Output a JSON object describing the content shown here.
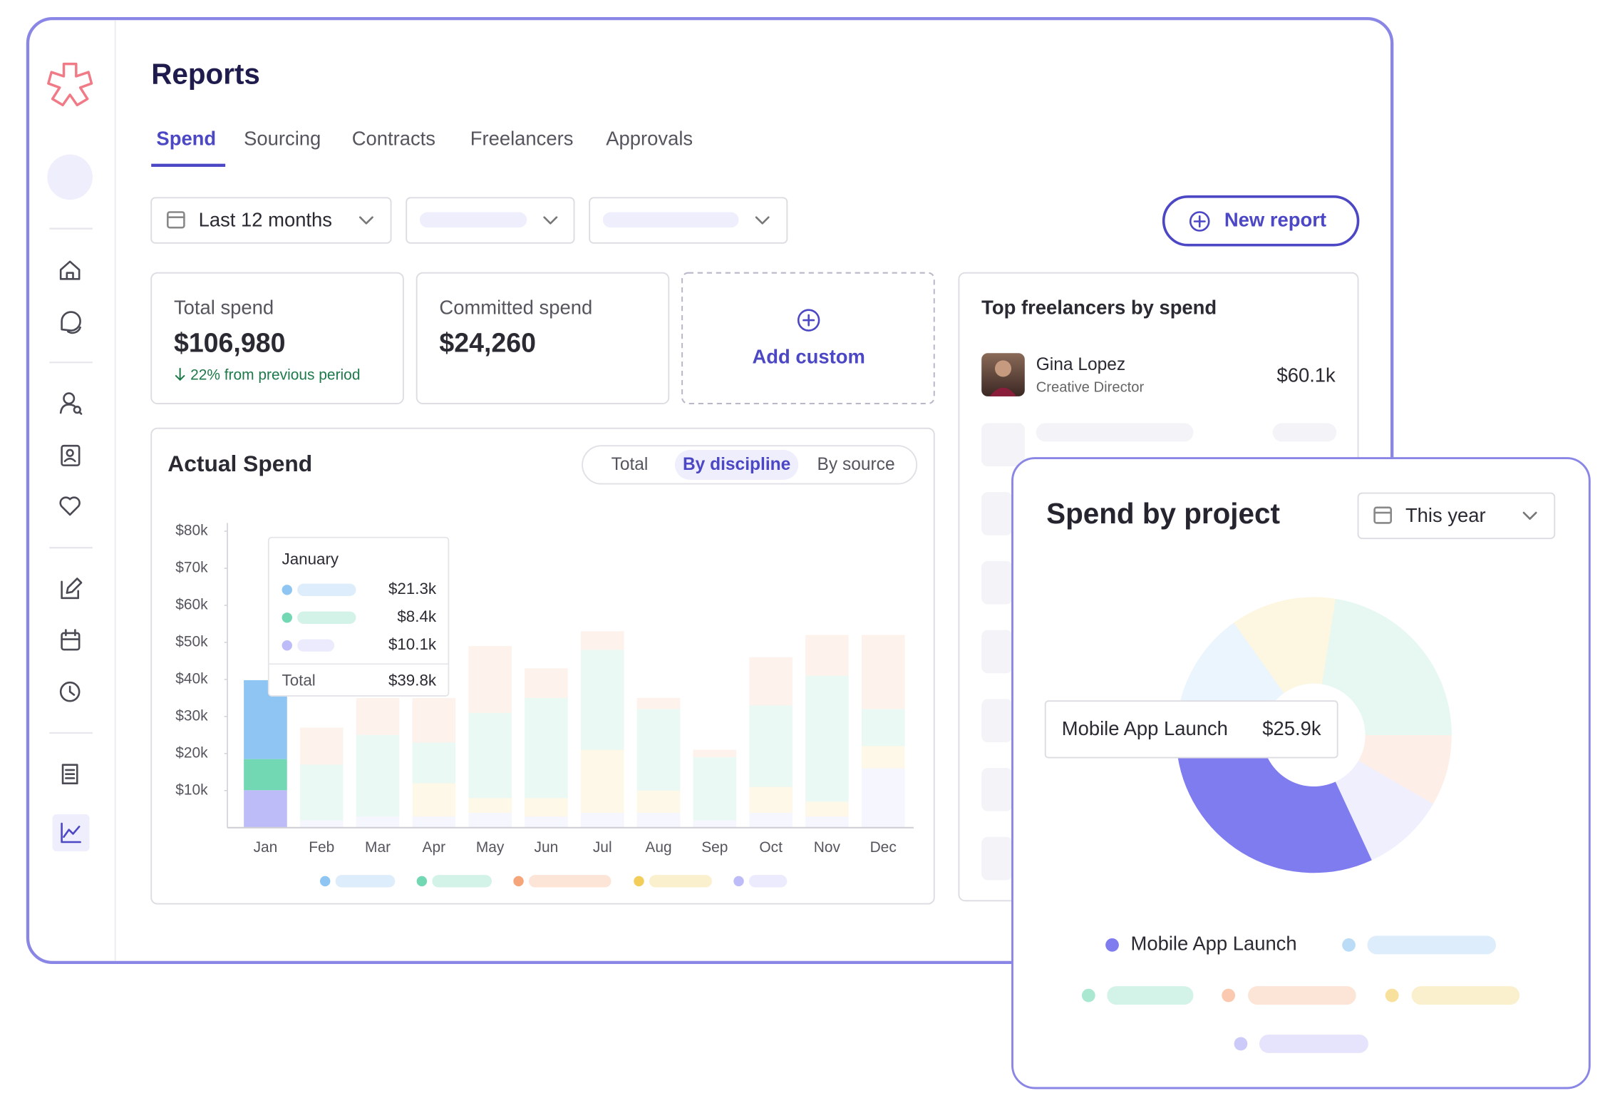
{
  "header": {
    "title": "Reports"
  },
  "tabs": [
    "Spend",
    "Sourcing",
    "Contracts",
    "Freelancers",
    "Approvals"
  ],
  "filters": {
    "date": "Last 12 months"
  },
  "new_report": "New report",
  "cards": [
    {
      "label": "Total spend",
      "value": "$106,980",
      "change": "22% from previous period"
    },
    {
      "label": "Committed spend",
      "value": "$24,260"
    }
  ],
  "add_custom": "Add custom",
  "top_freelancers": {
    "title": "Top freelancers by spend",
    "items": [
      {
        "name": "Gina Lopez",
        "role": "Creative Director",
        "amount": "$60.1k"
      }
    ]
  },
  "spend_toggle": [
    "Total",
    "By discipline",
    "By source"
  ],
  "project_filter": "This year",
  "chart_data": [
    {
      "type": "bar",
      "title": "Actual Spend",
      "categories": [
        "Jan",
        "Feb",
        "Mar",
        "Apr",
        "May",
        "Jun",
        "Jul",
        "Aug",
        "Sep",
        "Oct",
        "Nov",
        "Dec"
      ],
      "highlighted_category": "Jan",
      "ylim": [
        0,
        80
      ],
      "yticks": [
        {
          "value": 10,
          "label": "$10k"
        },
        {
          "value": 20,
          "label": "$20k"
        },
        {
          "value": 30,
          "label": "$30k"
        },
        {
          "value": 40,
          "label": "$40k"
        },
        {
          "value": 50,
          "label": "$50k"
        },
        {
          "value": 60,
          "label": "$60k"
        },
        {
          "value": 70,
          "label": "$70k"
        },
        {
          "value": 80,
          "label": "$80k"
        }
      ],
      "series": [
        {
          "color": "#bdbcf8",
          "values": [
            10.1,
            2,
            3,
            3,
            4,
            3,
            4,
            4,
            2,
            4,
            3,
            16
          ]
        },
        {
          "color": "#f2cd5a",
          "values": [
            0,
            0,
            0,
            9,
            4,
            5,
            17,
            6,
            0,
            7,
            4,
            6
          ]
        },
        {
          "color": "#72d8b4",
          "values": [
            8.4,
            15,
            22,
            11,
            23,
            27,
            27,
            22,
            17,
            22,
            34,
            10
          ]
        },
        {
          "color": "#8ec5f2",
          "values": [
            21.3,
            0,
            0,
            0,
            0,
            0,
            0,
            0,
            0,
            0,
            0,
            0
          ]
        },
        {
          "color": "#f6a57a",
          "values": [
            0,
            10,
            10,
            12,
            18,
            8,
            5,
            3,
            2,
            13,
            11,
            20
          ]
        }
      ],
      "tooltip": {
        "title": "January",
        "items": [
          "$21.3k",
          "$8.4k",
          "$10.1k"
        ],
        "total_label": "Total",
        "total": "$39.8k"
      }
    },
    {
      "type": "pie",
      "title": "Spend by project",
      "categories": [
        null,
        null,
        null,
        null,
        "Mobile App Launch",
        null
      ],
      "values": [
        10.9,
        19.8,
        7.3,
        8.6,
        25.9,
        15.5
      ],
      "value_labels": [
        null,
        null,
        null,
        null,
        "$25.9k",
        null
      ],
      "colors": [
        "#f2cd5a",
        "#72d8b4",
        "#f6a57a",
        "#a9a7f5",
        "#7f7cf0",
        "#8ec5f2"
      ]
    }
  ]
}
